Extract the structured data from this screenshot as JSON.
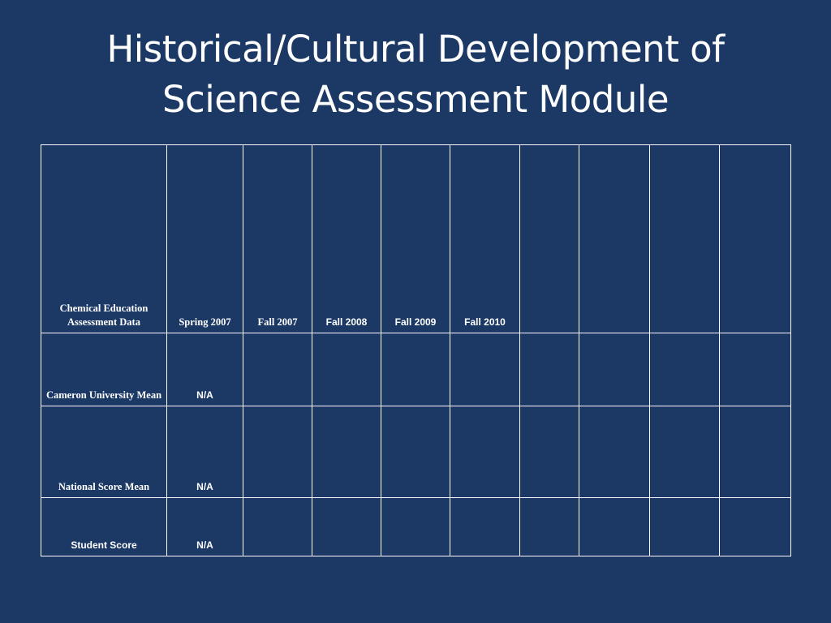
{
  "slide": {
    "title_line1": "Historical/Cultural Development of",
    "title_line2": "Science Assessment Module"
  },
  "table": {
    "header": {
      "label": "Chemical Education Assessment Data",
      "columns": [
        "Spring 2007",
        "Fall 2007",
        "Fall 2008",
        "Fall 2009",
        "Fall 2010",
        "",
        "",
        "",
        ""
      ]
    },
    "rows": [
      {
        "label": "Cameron University Mean",
        "values": [
          "N/A",
          "",
          "",
          "",
          "",
          "",
          "",
          "",
          ""
        ]
      },
      {
        "label": "National Score Mean",
        "values": [
          "N/A",
          "",
          "",
          "",
          "",
          "",
          "",
          "",
          ""
        ]
      },
      {
        "label": "Student Score",
        "values": [
          "N/A",
          "",
          "",
          "",
          "",
          "",
          "",
          "",
          ""
        ]
      }
    ]
  },
  "colors": {
    "background": "#1b3964",
    "text": "#ffffff",
    "grid_lines": "#ffffff"
  }
}
